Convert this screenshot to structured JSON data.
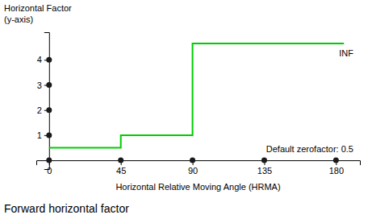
{
  "chart_data": {
    "type": "line",
    "title": "Forward horizontal factor",
    "x_label": "Horizontal Relative Moving Angle (HRMA)",
    "y_label": [
      "Horizontal Factor",
      "(y-axis)"
    ],
    "annotations": [
      "INF",
      "Default zerofactor: 0.5"
    ],
    "series": [
      {
        "type": "line",
        "color": "#00cc00",
        "x": [
          0,
          45,
          45,
          90,
          90,
          185
        ],
        "values": [
          0.5,
          0.5,
          1.0,
          1.0,
          4.65,
          4.65
        ]
      },
      {
        "type": "scatter",
        "marker": "circle",
        "color": "#1a1a1a",
        "x": [
          0,
          45,
          90,
          135,
          180
        ],
        "values": [
          0,
          0,
          0,
          0,
          0
        ]
      },
      {
        "type": "scatter",
        "marker": "circle",
        "color": "#1a1a1a",
        "x": [
          0,
          0,
          0,
          0
        ],
        "values": [
          1,
          2,
          3,
          4
        ]
      }
    ],
    "xlim": [
      -8,
      195
    ],
    "ylim": [
      -0.35,
      5.1
    ],
    "xticks": [
      0,
      45,
      90,
      135,
      180
    ],
    "yticks": [
      1,
      2,
      3,
      4
    ],
    "grid": false
  }
}
